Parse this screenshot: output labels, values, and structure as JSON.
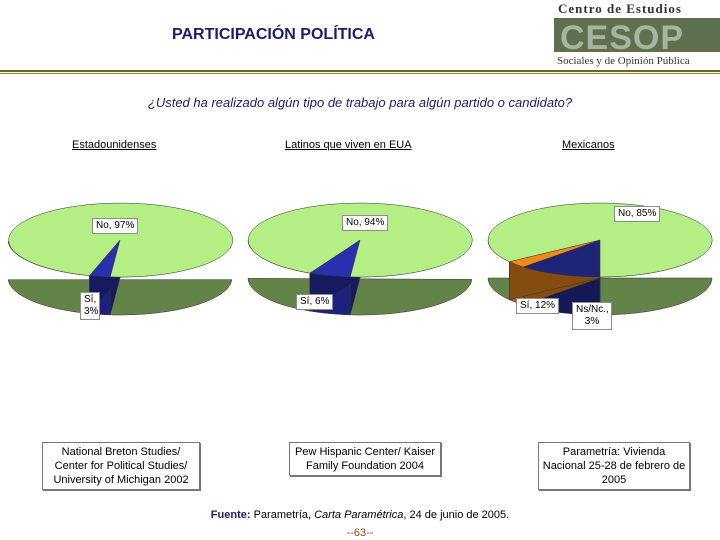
{
  "title": "PARTICIPACIÓN POLÍTICA",
  "logo": {
    "line1": "Centro de Estudios",
    "big": "CESOP",
    "line2": "Sociales y de Opinión Pública",
    "colors": {
      "band": "#5f7050",
      "light": "#a8b4a0",
      "text": "#333333"
    }
  },
  "question": "¿Usted ha realizado algún tipo de trabajo para algún partido o candidato?",
  "chart_data": [
    {
      "type": "pie",
      "title": "Estadounidenses",
      "categories": [
        "No",
        "Sí"
      ],
      "values": [
        97,
        3
      ],
      "colors": [
        "#b4ee84",
        "#2830b0"
      ],
      "labels": [
        "No, 97%",
        "Sí, 3%"
      ],
      "source": "National Breton Studies/ Center for Political Studies/ University of Michigan 2002"
    },
    {
      "type": "pie",
      "title": "Latinos que viven en EUA",
      "categories": [
        "No",
        "Sí"
      ],
      "values": [
        94,
        6
      ],
      "colors": [
        "#b4ee84",
        "#2830b0"
      ],
      "labels": [
        "No, 94%",
        "Sí, 6%"
      ],
      "source": "Pew Hispanic Center/ Kaiser Family Foundation 2004"
    },
    {
      "type": "pie",
      "title": "Mexicanos",
      "categories": [
        "No",
        "Sí",
        "Ns/Nc."
      ],
      "values": [
        85,
        12,
        3
      ],
      "colors": [
        "#b4ee84",
        "#1e2478",
        "#f08a1c"
      ],
      "labels": [
        "No, 85%",
        "Sí, 12%",
        "Ns/Nc., 3%"
      ],
      "source": "Parametría: Vivienda Nacional 25-28 de febrero de 2005"
    }
  ],
  "footer": {
    "label": "Fuente:",
    "text_a": " Parametría, ",
    "text_italic": "Carta Paramétrica",
    "text_b": ", 24 de junio de 2005."
  },
  "page_number": "--63--"
}
